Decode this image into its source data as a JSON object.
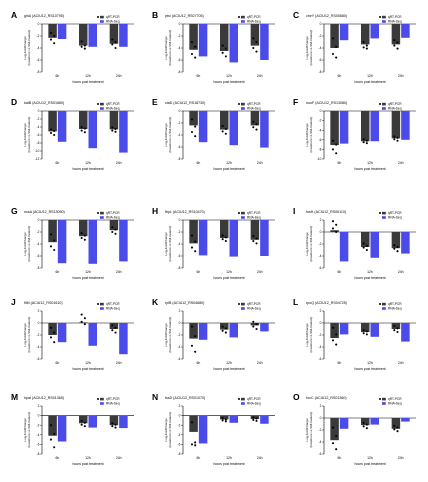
{
  "figure": {
    "colors": {
      "qrt_pcr": "#3a3a3a",
      "rna_seq": "#4b4bea",
      "dots": "#000000"
    }
  },
  "chart_data": [
    {
      "type": "bar",
      "label": "A",
      "title": "glnA (ACIU12_RS10795)",
      "categories": [
        "6h",
        "12h",
        "24h"
      ],
      "xlabel": "hours post treatment",
      "ylabel": "Log₂FoldChange (treatment vs SM-treated)",
      "ylim": [
        -8,
        0
      ],
      "yticks": [
        0,
        -2,
        -4,
        -6,
        -8
      ],
      "series": [
        {
          "name": "qRT-PCR",
          "values": [
            -2.3,
            -3.6,
            -3.3
          ]
        },
        {
          "name": "RNA-Seq",
          "values": [
            -2.5,
            -3.8,
            -3.8
          ]
        }
      ],
      "points": [
        [
          -1.5,
          -2.0,
          -2.6,
          -3.2
        ],
        [
          -2.9,
          -3.6,
          -3.8,
          -4.1
        ],
        [
          -2.6,
          -3.0,
          -3.4,
          -4.0
        ]
      ],
      "legend": "top-right"
    },
    {
      "type": "bar",
      "label": "B",
      "title": "ptsI (ACIU12_RS07705)",
      "categories": [
        "6h",
        "12h",
        "24h"
      ],
      "xlabel": "hours post treatment",
      "ylabel": "Log₂FoldChange (treatment vs SM-treated)",
      "ylim": [
        -8,
        0
      ],
      "yticks": [
        0,
        -2,
        -4,
        -6,
        -8
      ],
      "series": [
        {
          "name": "qRT-PCR",
          "values": [
            -4.3,
            -4.5,
            -3.6
          ]
        },
        {
          "name": "RNA-Seq",
          "values": [
            -5.4,
            -6.4,
            -6.0
          ]
        }
      ],
      "points": [
        [
          -3.0,
          -3.8,
          -5.0,
          -5.6
        ],
        [
          -3.6,
          -4.1,
          -4.8,
          -5.4
        ],
        [
          -2.4,
          -3.0,
          -4.0,
          -4.6
        ]
      ],
      "legend": "top-right"
    },
    {
      "type": "bar",
      "label": "C",
      "title": "cheY (ACIU12_RS00680)",
      "categories": [
        "6h",
        "12h",
        "24h"
      ],
      "xlabel": "hours post treatment",
      "ylabel": "Log₂FoldChange (treatment vs SM-treated)",
      "ylim": [
        -8,
        0
      ],
      "yticks": [
        0,
        -2,
        -4,
        -6,
        -8
      ],
      "series": [
        {
          "name": "qRT-PCR",
          "values": [
            -4.0,
            -3.4,
            -3.4
          ]
        },
        {
          "name": "RNA-Seq",
          "values": [
            -2.7,
            -2.4,
            -2.3
          ]
        }
      ],
      "points": [
        [
          -2.4,
          -3.8,
          -5.0,
          -5.6
        ],
        [
          -3.0,
          -3.6,
          -3.9,
          -4.1
        ],
        [
          -2.7,
          -3.1,
          -3.6,
          -4.1
        ]
      ],
      "legend": "top-right"
    },
    {
      "type": "bar",
      "label": "D",
      "title": "katB (ACIU12_RS01660)",
      "categories": [
        "6h",
        "12h",
        "24h"
      ],
      "xlabel": "hours post treatment",
      "ylabel": "Log₂FoldChange (treatment vs SM-treated)",
      "ylim": [
        -12,
        0
      ],
      "yticks": [
        0,
        -2,
        -4,
        -6,
        -8,
        -10,
        -12
      ],
      "series": [
        {
          "name": "qRT-PCR",
          "values": [
            -5.1,
            -4.5,
            -4.6
          ]
        },
        {
          "name": "RNA-Seq",
          "values": [
            -7.7,
            -9.3,
            -10.4
          ]
        }
      ],
      "points": [
        [
          -4.6,
          -5.0,
          -5.5,
          -6.0
        ],
        [
          -4.0,
          -4.4,
          -4.9,
          -5.3
        ],
        [
          -4.1,
          -4.5,
          -4.9,
          -5.2
        ]
      ],
      "legend": "top-right"
    },
    {
      "type": "bar",
      "label": "E",
      "title": "ctaD (ACIU12_RS18730)",
      "categories": [
        "6h",
        "12h",
        "24h"
      ],
      "xlabel": "hours post treatment",
      "ylabel": "Log₂FoldChange (treatment vs SM-treated)",
      "ylim": [
        -8,
        0
      ],
      "yticks": [
        0,
        -2,
        -4,
        -6,
        -8
      ],
      "series": [
        {
          "name": "qRT-PCR",
          "values": [
            -2.4,
            -3.1,
            -2.4
          ]
        },
        {
          "name": "RNA-Seq",
          "values": [
            -5.2,
            -5.7,
            -6.1
          ]
        }
      ],
      "points": [
        [
          -1.4,
          -2.6,
          -3.5,
          -4.2
        ],
        [
          -2.5,
          -3.0,
          -3.4,
          -3.8
        ],
        [
          -1.8,
          -2.2,
          -2.7,
          -3.1
        ]
      ],
      "legend": "top-right"
    },
    {
      "type": "bar",
      "label": "F",
      "title": "nuoF (ACIU12_RS13080)",
      "categories": [
        "6h",
        "12h",
        "24h"
      ],
      "xlabel": "hours post treatment",
      "ylabel": "Log₂FoldChange (treatment vs SM-treated)",
      "ylim": [
        -10,
        0
      ],
      "yticks": [
        0,
        -2,
        -4,
        -6,
        -8,
        -10
      ],
      "series": [
        {
          "name": "qRT-PCR",
          "values": [
            -7.1,
            -6.3,
            -5.7
          ]
        },
        {
          "name": "RNA-Seq",
          "values": [
            -6.8,
            -6.3,
            -6.0
          ]
        }
      ],
      "points": [
        [
          -6.2,
          -7.0,
          -8.0,
          -8.8
        ],
        [
          -5.9,
          -6.2,
          -6.5,
          -6.7
        ],
        [
          -5.3,
          -5.6,
          -5.9,
          -6.2
        ]
      ],
      "legend": "top-right"
    },
    {
      "type": "bar",
      "label": "G",
      "title": "ncsA (ACIU12_RS13050)",
      "categories": [
        "6h",
        "12h",
        "24h"
      ],
      "xlabel": "hours post treatment",
      "ylabel": "Log₂FoldChange (treatment vs SM-treated)",
      "ylim": [
        -8,
        0
      ],
      "yticks": [
        0,
        -2,
        -4,
        -6,
        -8
      ],
      "series": [
        {
          "name": "qRT-PCR",
          "values": [
            -3.7,
            -2.7,
            -1.7
          ]
        },
        {
          "name": "RNA-Seq",
          "values": [
            -7.2,
            -7.3,
            -6.9
          ]
        }
      ],
      "points": [
        [
          -2.4,
          -3.4,
          -4.4,
          -5.0
        ],
        [
          -2.2,
          -2.6,
          -3.0,
          -3.3
        ],
        [
          -1.2,
          -1.6,
          -2.0,
          -2.3
        ]
      ],
      "legend": "top-right"
    },
    {
      "type": "bar",
      "label": "H",
      "title": "fbpL (ACIU12_RS10470)",
      "categories": [
        "6h",
        "12h",
        "24h"
      ],
      "xlabel": "hours post treatment",
      "ylabel": "Log₂FoldChange (treatment vs SM-treated)",
      "ylim": [
        -8,
        0
      ],
      "yticks": [
        0,
        -2,
        -4,
        -6,
        -8
      ],
      "series": [
        {
          "name": "qRT-PCR",
          "values": [
            -3.9,
            -3.0,
            -3.3
          ]
        },
        {
          "name": "RNA-Seq",
          "values": [
            -5.9,
            -6.1,
            -6.0
          ]
        }
      ],
      "points": [
        [
          -2.6,
          -3.6,
          -4.6,
          -5.2
        ],
        [
          -2.6,
          -2.9,
          -3.2,
          -3.5
        ],
        [
          -2.7,
          -3.1,
          -3.5,
          -3.9
        ]
      ],
      "legend": "top-right"
    },
    {
      "type": "bar",
      "label": "I",
      "title": "fusH (ACIU12_RS06110)",
      "categories": [
        "6h",
        "12h",
        "24h"
      ],
      "xlabel": "hours post treatment",
      "ylabel": "Log₂FoldChange (treatment vs SM-treated)",
      "ylim": [
        -6,
        2
      ],
      "yticks": [
        2,
        0,
        -2,
        -4,
        -6
      ],
      "series": [
        {
          "name": "qRT-PCR",
          "values": [
            0.3,
            -2.5,
            -2.7
          ]
        },
        {
          "name": "RNA-Seq",
          "values": [
            -4.9,
            -4.3,
            -3.6
          ]
        }
      ],
      "points": [
        [
          1.8,
          1.2,
          0.6,
          0.0
        ],
        [
          -1.9,
          -2.3,
          -2.6,
          -3.0
        ],
        [
          -2.2,
          -2.5,
          -2.8,
          -3.2
        ]
      ],
      "legend": "top-right"
    },
    {
      "type": "bar",
      "label": "J",
      "title": "fliM (ACIU12_RS01610)",
      "categories": [
        "6h",
        "12h",
        "24h"
      ],
      "xlabel": "hours post treatment",
      "ylabel": "Log₂FoldChange (treatment vs SM-treated)",
      "ylim": [
        -6,
        2
      ],
      "yticks": [
        2,
        0,
        -2,
        -4,
        -6
      ],
      "series": [
        {
          "name": "qRT-PCR",
          "values": [
            -2.0,
            0.1,
            -1.0
          ]
        },
        {
          "name": "RNA-Seq",
          "values": [
            -3.2,
            -3.8,
            -5.2
          ]
        }
      ],
      "points": [
        [
          -0.8,
          -1.6,
          -2.4,
          -3.2
        ],
        [
          1.4,
          0.8,
          0.2,
          -0.2
        ],
        [
          -0.4,
          -0.8,
          -1.2,
          -1.6
        ]
      ],
      "legend": "top-right"
    },
    {
      "type": "bar",
      "label": "K",
      "title": "rplB (ACIU12_RS04680)",
      "categories": [
        "6h",
        "12h",
        "24h"
      ],
      "xlabel": "hours post treatment",
      "ylabel": "Log₂FoldChange (treatment vs SM-treated)",
      "ylim": [
        -6,
        2
      ],
      "yticks": [
        2,
        0,
        -2,
        -4,
        -6
      ],
      "series": [
        {
          "name": "qRT-PCR",
          "values": [
            -2.6,
            -1.1,
            -0.4
          ]
        },
        {
          "name": "RNA-Seq",
          "values": [
            -2.8,
            -2.4,
            -1.4
          ]
        }
      ],
      "points": [
        [
          -0.6,
          -2.2,
          -3.8,
          -4.8
        ],
        [
          -0.6,
          -0.9,
          -1.3,
          -1.6
        ],
        [
          0.2,
          -0.2,
          -0.6,
          -1.0
        ]
      ],
      "legend": "top-right"
    },
    {
      "type": "bar",
      "label": "L",
      "title": "rpoQ (ACIU12_RS04725)",
      "categories": [
        "6h",
        "12h",
        "24h"
      ],
      "xlabel": "hours post treatment",
      "ylabel": "Log₂FoldChange (treatment vs SM-treated)",
      "ylim": [
        -6,
        2
      ],
      "yticks": [
        2,
        0,
        -2,
        -4,
        -6
      ],
      "series": [
        {
          "name": "qRT-PCR",
          "values": [
            -2.5,
            -1.5,
            -1.0
          ]
        },
        {
          "name": "RNA-Seq",
          "values": [
            -1.9,
            -2.3,
            -3.1
          ]
        }
      ],
      "points": [
        [
          -0.8,
          -1.9,
          -2.9,
          -3.6
        ],
        [
          -1.2,
          -1.4,
          -1.7,
          -1.9
        ],
        [
          -0.5,
          -0.9,
          -1.2,
          -1.5
        ]
      ],
      "legend": "top-right"
    },
    {
      "type": "bar",
      "label": "M",
      "title": "hpaI (ACIU12_RS01365)",
      "categories": [
        "6h",
        "12h",
        "24h"
      ],
      "xlabel": "hours post treatment",
      "ylabel": "Log₂FoldChange (treatment vs SM-treated)",
      "ylim": [
        -8,
        2
      ],
      "yticks": [
        2,
        0,
        -2,
        -4,
        -6,
        -8
      ],
      "series": [
        {
          "name": "qRT-PCR",
          "values": [
            -4.2,
            -1.6,
            -2.0
          ]
        },
        {
          "name": "RNA-Seq",
          "values": [
            -5.4,
            -2.5,
            -2.6
          ]
        }
      ],
      "points": [
        [
          -2.0,
          -3.8,
          -5.0,
          -6.6
        ],
        [
          -1.1,
          -1.5,
          -1.9,
          -2.2
        ],
        [
          -1.6,
          -1.9,
          -2.2,
          -2.5
        ]
      ],
      "legend": "top-right"
    },
    {
      "type": "bar",
      "label": "N",
      "title": "tssD (ACIU12_RS01070)",
      "categories": [
        "6h",
        "12h",
        "24h"
      ],
      "xlabel": "hours post treatment",
      "ylabel": "Log₂FoldChange (treatment vs SM-treated)",
      "ylim": [
        -8,
        2
      ],
      "yticks": [
        2,
        0,
        -2,
        -4,
        -6,
        -8
      ],
      "series": [
        {
          "name": "qRT-PCR",
          "values": [
            -3.4,
            -0.8,
            -0.7
          ]
        },
        {
          "name": "RNA-Seq",
          "values": [
            -5.8,
            -1.5,
            -1.7
          ]
        }
      ],
      "points": [
        [
          -1.4,
          -5.6,
          -6.0,
          -6.2
        ],
        [
          -0.5,
          -0.8,
          -1.0,
          -1.2
        ],
        [
          -0.4,
          -0.6,
          -0.9,
          -1.1
        ]
      ],
      "legend": "top-right"
    },
    {
      "type": "bar",
      "label": "O",
      "title": "hrcC (ACIU12_RS01360)",
      "categories": [
        "6h",
        "12h",
        "24h"
      ],
      "xlabel": "hours post treatment",
      "ylabel": "Log₂FoldChange (treatment vs SM-treated)",
      "ylim": [
        -6,
        2
      ],
      "yticks": [
        2,
        0,
        -2,
        -4,
        -6
      ],
      "series": [
        {
          "name": "qRT-PCR",
          "values": [
            -3.7,
            -1.2,
            -1.8
          ]
        },
        {
          "name": "RNA-Seq",
          "values": [
            -1.8,
            -1.1,
            -0.6
          ]
        }
      ],
      "points": [
        [
          -1.6,
          -3.0,
          -4.2,
          -5.2
        ],
        [
          -0.8,
          -1.1,
          -1.4,
          -1.7
        ],
        [
          -1.3,
          -1.6,
          -1.9,
          -2.2
        ]
      ],
      "legend": "top-right"
    }
  ]
}
